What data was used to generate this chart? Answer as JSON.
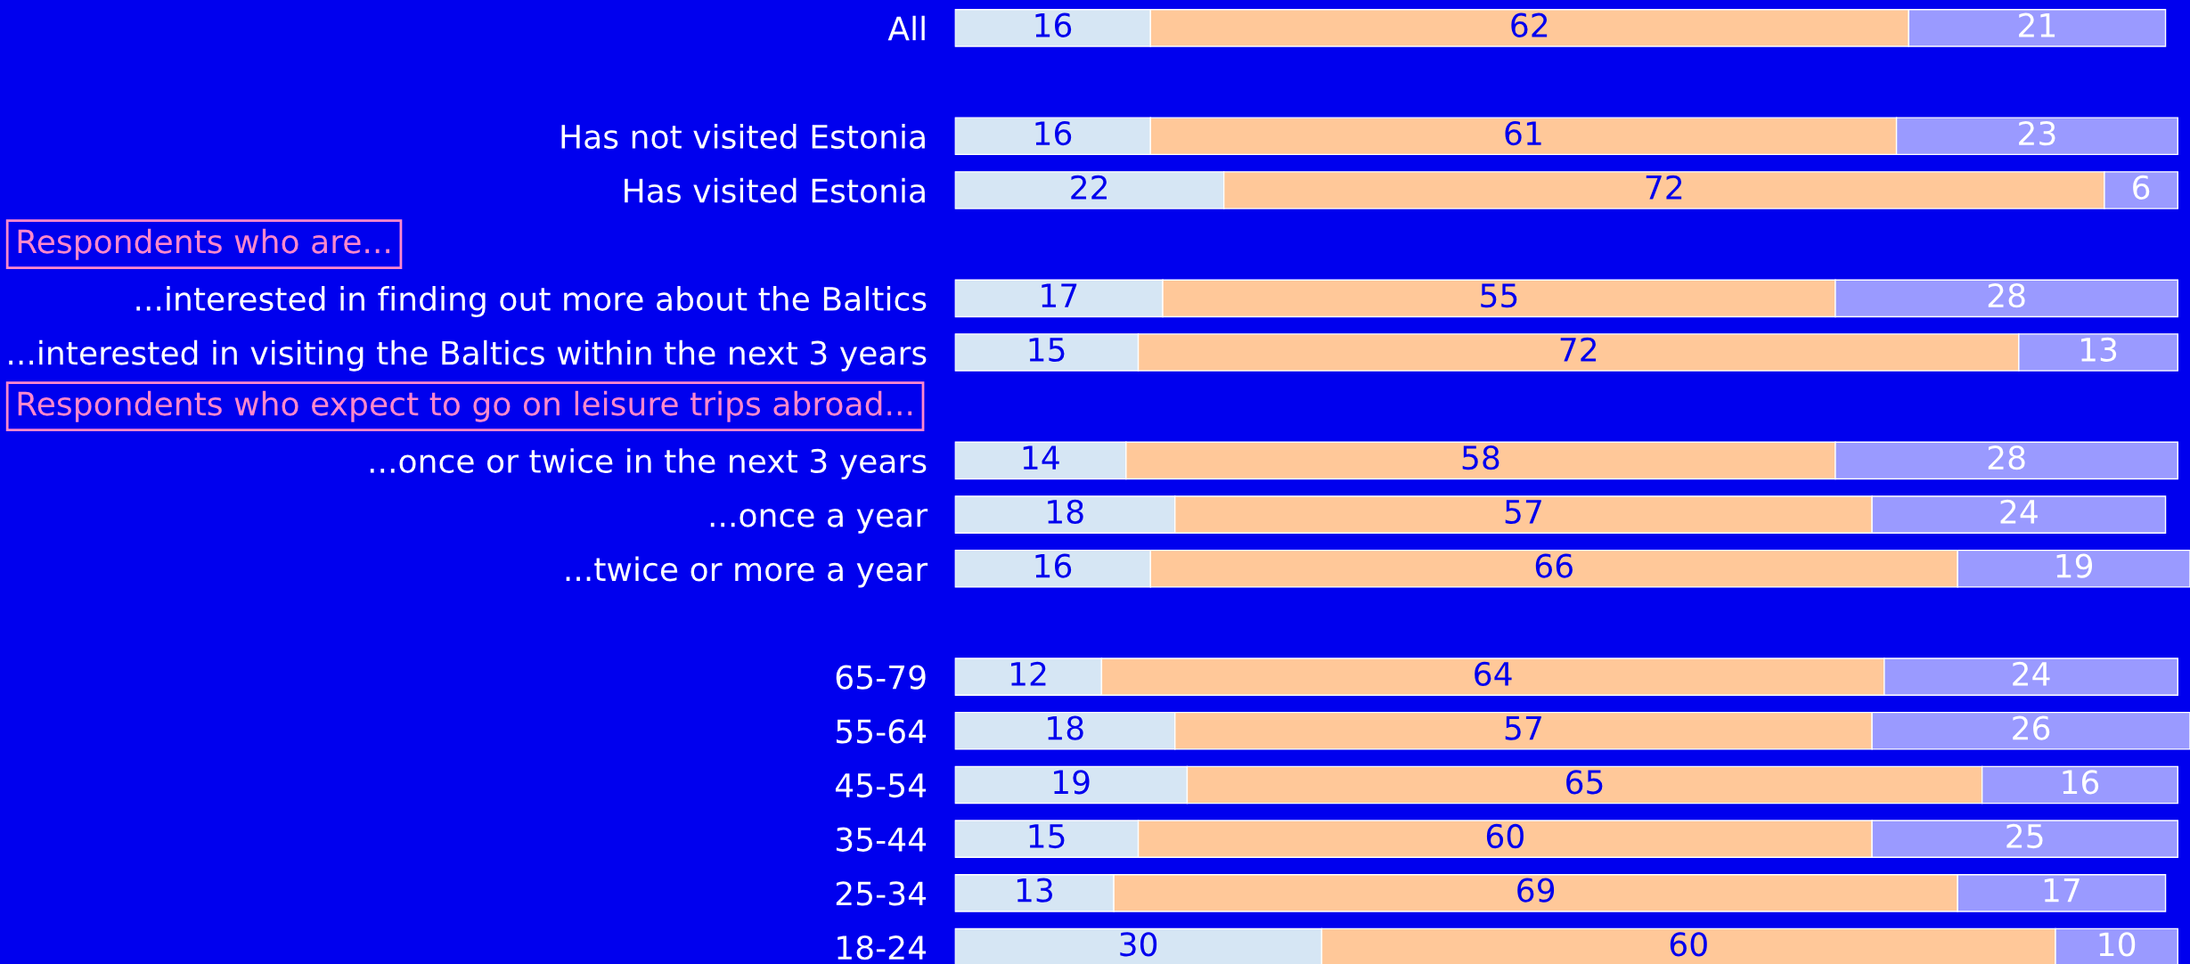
{
  "chart_data": {
    "type": "bar",
    "orientation": "horizontal",
    "stacked": true,
    "data_labels": true,
    "tick_labels": "y",
    "grid": false,
    "annotations": [
      "Respondents who are...",
      "Respondents who expect to go on leisure trips abroad..."
    ],
    "categories": [
      "All",
      null,
      "Has not visited Estonia",
      "Has visited Estonia",
      null,
      "...interested in finding out more about the Baltics",
      "...interested in visiting the Baltics within the next 3 years",
      null,
      "...once or twice in the next 3 years",
      "...once a year",
      "...twice or more a year",
      null,
      "65-79",
      "55-64",
      "45-54",
      "35-44",
      "25-34",
      "18-24"
    ],
    "xlim": [
      0,
      101
    ],
    "series": [
      {
        "color": "#d6e6f4",
        "values": [
          16,
          null,
          16,
          22,
          null,
          17,
          15,
          null,
          14,
          18,
          16,
          null,
          12,
          18,
          19,
          15,
          13,
          30
        ]
      },
      {
        "color": "#ffc899",
        "values": [
          62,
          null,
          61,
          72,
          null,
          55,
          72,
          null,
          58,
          57,
          66,
          null,
          64,
          57,
          65,
          60,
          69,
          60
        ]
      },
      {
        "color": "#9a9aff",
        "values": [
          21,
          null,
          23,
          6,
          null,
          28,
          13,
          null,
          28,
          24,
          19,
          null,
          24,
          26,
          16,
          25,
          17,
          10
        ]
      }
    ]
  }
}
